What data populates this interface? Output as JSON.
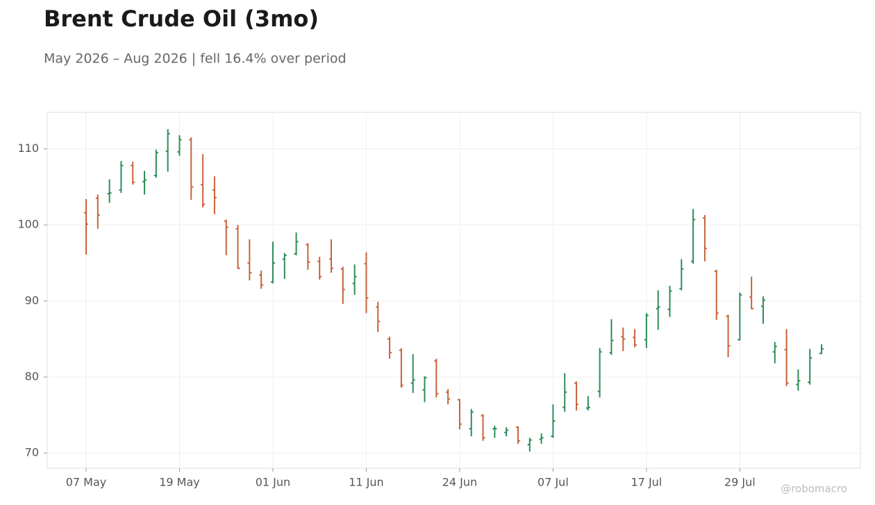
{
  "chart_data": {
    "type": "ohlc",
    "title": "Brent Crude Oil (3mo)",
    "subtitle": "May 2026 – Aug 2026 | fell 16.4% over period",
    "watermark": "@robomacro",
    "categories": [
      "07 May",
      null,
      null,
      null,
      null,
      null,
      null,
      null,
      "19 May",
      null,
      null,
      null,
      null,
      null,
      null,
      null,
      "01 Jun",
      null,
      null,
      null,
      null,
      null,
      null,
      null,
      "11 Jun",
      null,
      null,
      null,
      null,
      null,
      null,
      null,
      "24 Jun",
      null,
      null,
      null,
      null,
      null,
      null,
      null,
      "07 Jul",
      null,
      null,
      null,
      null,
      null,
      null,
      null,
      "17 Jul",
      null,
      null,
      null,
      null,
      null,
      null,
      null,
      "29 Jul",
      null,
      null,
      null,
      null,
      null,
      null,
      null
    ],
    "open": [
      101.6,
      103.5,
      104.1,
      104.6,
      107.8,
      105.7,
      106.5,
      109.7,
      109.6,
      111.2,
      105.3,
      104.6,
      100.5,
      99.5,
      95.0,
      93.4,
      92.5,
      95.5,
      96.2,
      97.4,
      95.2,
      95.5,
      94.2,
      92.3,
      94.9,
      89.2,
      85.0,
      83.5,
      79.2,
      78.3,
      82.1,
      78.0,
      77.0,
      73.2,
      74.9,
      73.2,
      72.7,
      73.4,
      71.1,
      71.8,
      72.2,
      76.0,
      79.2,
      75.9,
      78.1,
      83.2,
      85.3,
      85.2,
      84.9,
      89.0,
      88.9,
      91.6,
      95.2,
      100.9,
      93.9,
      88.0,
      84.9,
      90.5,
      89.3,
      83.3,
      83.6,
      79.0,
      79.3,
      83.1
    ],
    "high": [
      103.4,
      104.0,
      106.0,
      108.4,
      108.3,
      107.1,
      109.9,
      112.6,
      111.8,
      111.5,
      109.3,
      106.4,
      100.7,
      100.0,
      98.1,
      94.0,
      97.8,
      96.3,
      99.0,
      97.6,
      95.8,
      98.1,
      94.5,
      94.8,
      96.4,
      89.9,
      85.3,
      83.8,
      83.0,
      80.1,
      82.4,
      78.4,
      77.1,
      75.8,
      75.1,
      73.6,
      73.4,
      73.5,
      72.0,
      72.6,
      76.4,
      80.5,
      79.4,
      77.5,
      83.8,
      87.6,
      86.5,
      86.3,
      88.4,
      91.4,
      92.0,
      95.5,
      102.1,
      101.3,
      94.1,
      88.2,
      91.1,
      93.2,
      90.6,
      84.6,
      86.3,
      81.0,
      83.7,
      84.3
    ],
    "low": [
      96.1,
      99.5,
      102.9,
      104.2,
      105.3,
      104.0,
      106.2,
      107.0,
      109.1,
      103.3,
      102.3,
      101.4,
      96.0,
      94.2,
      92.7,
      91.6,
      92.3,
      92.9,
      96.0,
      94.1,
      92.8,
      93.7,
      89.6,
      90.8,
      88.4,
      85.9,
      82.4,
      78.6,
      77.9,
      76.7,
      77.3,
      76.4,
      73.1,
      72.2,
      71.6,
      72.0,
      72.2,
      71.2,
      70.2,
      71.2,
      72.0,
      75.4,
      75.6,
      75.6,
      77.3,
      82.9,
      83.4,
      83.9,
      83.8,
      86.2,
      87.9,
      91.4,
      94.9,
      95.2,
      87.5,
      82.6,
      84.8,
      88.9,
      87.0,
      81.8,
      78.8,
      78.2,
      79.0,
      83.0
    ],
    "close": [
      100.1,
      101.3,
      104.2,
      107.8,
      105.6,
      105.9,
      109.5,
      112.0,
      111.2,
      105.0,
      102.7,
      103.6,
      99.7,
      94.3,
      93.7,
      92.1,
      95.0,
      96.0,
      97.8,
      95.1,
      93.2,
      94.3,
      91.5,
      93.2,
      90.4,
      87.3,
      83.2,
      78.9,
      79.6,
      79.9,
      77.8,
      77.1,
      73.8,
      75.4,
      72.0,
      73.2,
      73.0,
      71.6,
      71.7,
      72.0,
      74.2,
      78.0,
      76.4,
      76.0,
      83.3,
      84.8,
      85.0,
      84.2,
      88.1,
      89.2,
      91.3,
      94.2,
      100.7,
      96.9,
      88.4,
      84.1,
      90.8,
      89.0,
      90.1,
      84.0,
      79.2,
      79.5,
      82.5,
      83.7
    ],
    "up_color": "#2e8b57",
    "down_color": "#c8623a",
    "ylim": [
      68,
      114.8
    ],
    "yticks": [
      70,
      80,
      90,
      100,
      110
    ],
    "grid": true
  }
}
